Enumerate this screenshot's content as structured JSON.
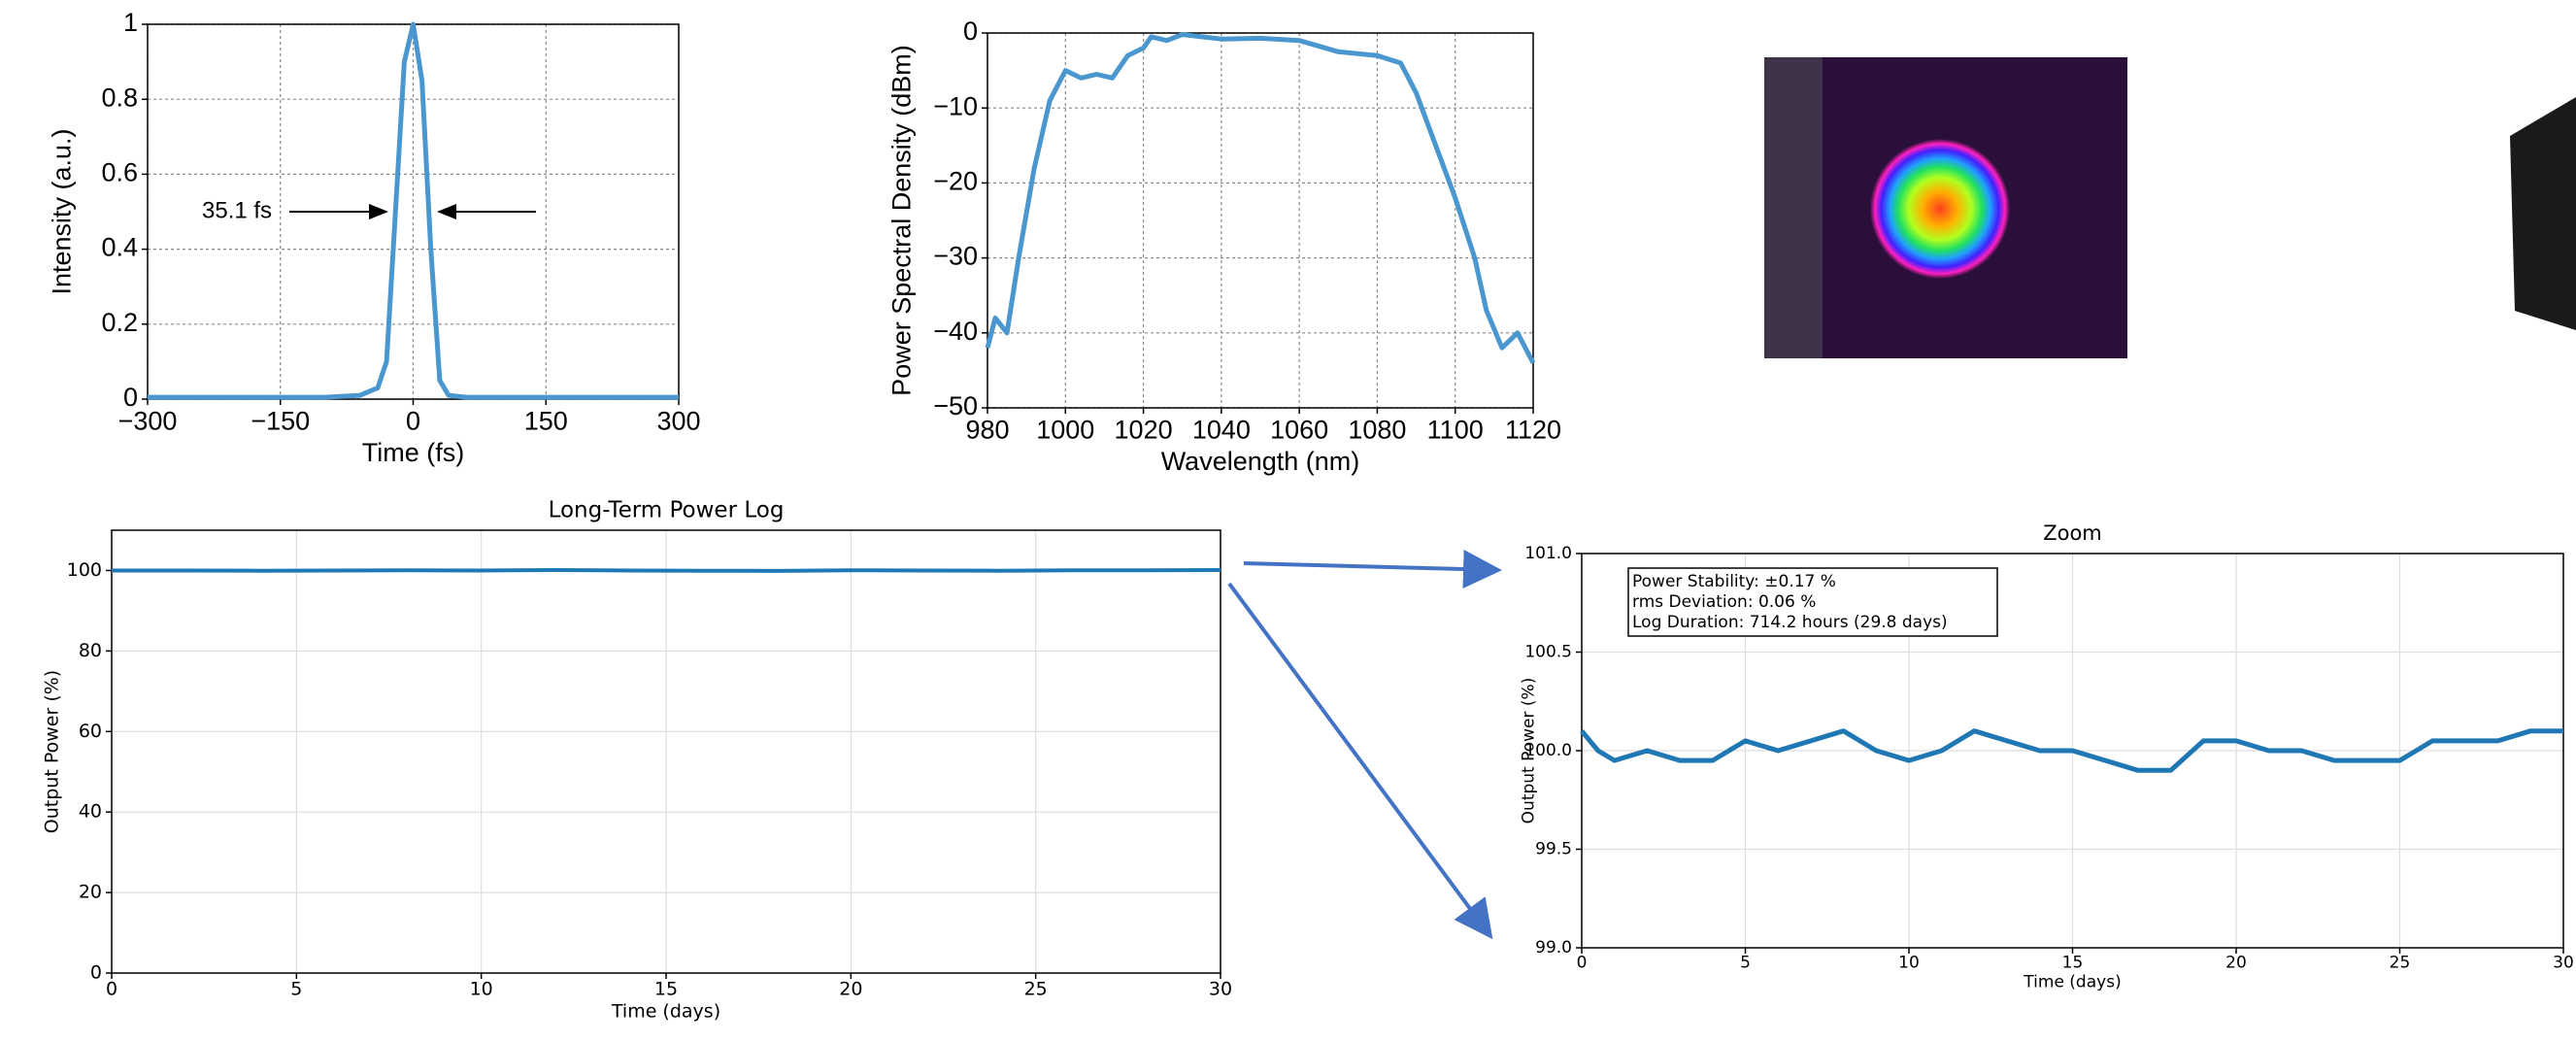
{
  "chart_data": [
    {
      "type": "line",
      "x_label": "Time (fs)",
      "y_label": "Intensity (a.u.)",
      "x": [
        -300,
        -200,
        -100,
        -60,
        -40,
        -30,
        -20,
        -10,
        0,
        10,
        20,
        30,
        40,
        60,
        100,
        200,
        300
      ],
      "series": [
        {
          "color": "#4a97d0",
          "values": [
            0.005,
            0.005,
            0.005,
            0.01,
            0.03,
            0.1,
            0.5,
            0.9,
            1,
            0.85,
            0.4,
            0.05,
            0.01,
            0.005,
            0.005,
            0.005,
            0.005
          ]
        }
      ],
      "xlim": [
        -300,
        300
      ],
      "xticks": [
        {
          "value": -300,
          "label": "−300"
        },
        {
          "value": -150,
          "label": "−150"
        },
        0,
        150,
        300
      ],
      "ylim": [
        0,
        1
      ],
      "yticks": [
        0,
        0.2,
        0.4,
        0.6,
        0.8,
        1
      ],
      "grid": true,
      "annotations": [
        "35.1 fs"
      ]
    },
    {
      "type": "line",
      "x_label": "Wavelength (nm)",
      "y_label": "Power Spectral Density (dBm)",
      "x": [
        980,
        982,
        985,
        988,
        992,
        996,
        1000,
        1004,
        1008,
        1012,
        1016,
        1020,
        1022,
        1026,
        1030,
        1035,
        1040,
        1050,
        1060,
        1070,
        1080,
        1086,
        1090,
        1095,
        1100,
        1105,
        1108,
        1112,
        1116,
        1120
      ],
      "series": [
        {
          "color": "#4a97d0",
          "values": [
            -42,
            -38,
            -40,
            -30,
            -18,
            -9,
            -5,
            -6,
            -5.5,
            -6,
            -3,
            -2,
            -0.5,
            -1,
            -0.2,
            -0.5,
            -0.8,
            -0.7,
            -1,
            -2.5,
            -3,
            -4,
            -8,
            -15,
            -22,
            -30,
            -37,
            -42,
            -40,
            -44
          ]
        }
      ],
      "xlim": [
        980,
        1120
      ],
      "xticks": [
        980,
        1000,
        1020,
        1040,
        1060,
        1080,
        1100,
        1120
      ],
      "ylim": [
        -50,
        0
      ],
      "yticks": [
        {
          "value": -50,
          "label": "−50"
        },
        {
          "value": -40,
          "label": "−40"
        },
        {
          "value": -30,
          "label": "−30"
        },
        {
          "value": -20,
          "label": "−20"
        },
        {
          "value": -10,
          "label": "−10"
        },
        0
      ],
      "grid": true
    },
    {
      "type": "line",
      "title": "Long-Term Power Log",
      "x_label": "Time (days)",
      "y_label": "Output Power (%)",
      "x": [
        0,
        2,
        4,
        6,
        8,
        10,
        12,
        14,
        16,
        18,
        20,
        22,
        24,
        26,
        28,
        30
      ],
      "series": [
        {
          "color": "#1f77b4",
          "values": [
            100,
            100,
            99.95,
            100,
            100.05,
            100,
            100.1,
            100,
            99.95,
            99.9,
            100.05,
            100,
            99.95,
            100.05,
            100.05,
            100.1
          ]
        }
      ],
      "xlim": [
        0,
        30
      ],
      "xticks": [
        0,
        5,
        10,
        15,
        20,
        25,
        30
      ],
      "ylim": [
        0,
        110
      ],
      "yticks": [
        0,
        20,
        40,
        60,
        80,
        100
      ],
      "grid": true
    },
    {
      "type": "line",
      "title": "Zoom",
      "x_label": "Time (days)",
      "y_label": "Output Power (%)",
      "x": [
        0,
        0.5,
        1,
        2,
        3,
        4,
        5,
        6,
        7,
        8,
        9,
        10,
        11,
        12,
        13,
        14,
        15,
        16,
        17,
        18,
        19,
        20,
        21,
        22,
        23,
        24,
        25,
        26,
        27,
        28,
        29,
        30
      ],
      "series": [
        {
          "color": "#1f77b4",
          "values": [
            100.1,
            100.0,
            99.95,
            100.0,
            99.95,
            99.95,
            100.05,
            100.0,
            100.05,
            100.1,
            100.0,
            99.95,
            100.0,
            100.1,
            100.05,
            100.0,
            100.0,
            99.95,
            99.9,
            99.9,
            100.05,
            100.05,
            100.0,
            100.0,
            99.95,
            99.95,
            99.95,
            100.05,
            100.05,
            100.05,
            100.1,
            100.1
          ]
        }
      ],
      "xlim": [
        0,
        30
      ],
      "xticks": [
        0,
        5,
        10,
        15,
        20,
        25,
        30
      ],
      "ylim": [
        99,
        101
      ],
      "yticks": [
        {
          "value": 99,
          "label": "99.0"
        },
        {
          "value": 99.5,
          "label": "99.5"
        },
        {
          "value": 100,
          "label": "100.0"
        },
        {
          "value": 100.5,
          "label": "100.5"
        },
        {
          "value": 101,
          "label": "101.0"
        }
      ],
      "grid": true,
      "annotations": [
        "Power Stability:  ±0.17 %",
        "rms Deviation:    0.06 %",
        "Log Duration:     714.2 hours (29.8 days)"
      ]
    }
  ]
}
